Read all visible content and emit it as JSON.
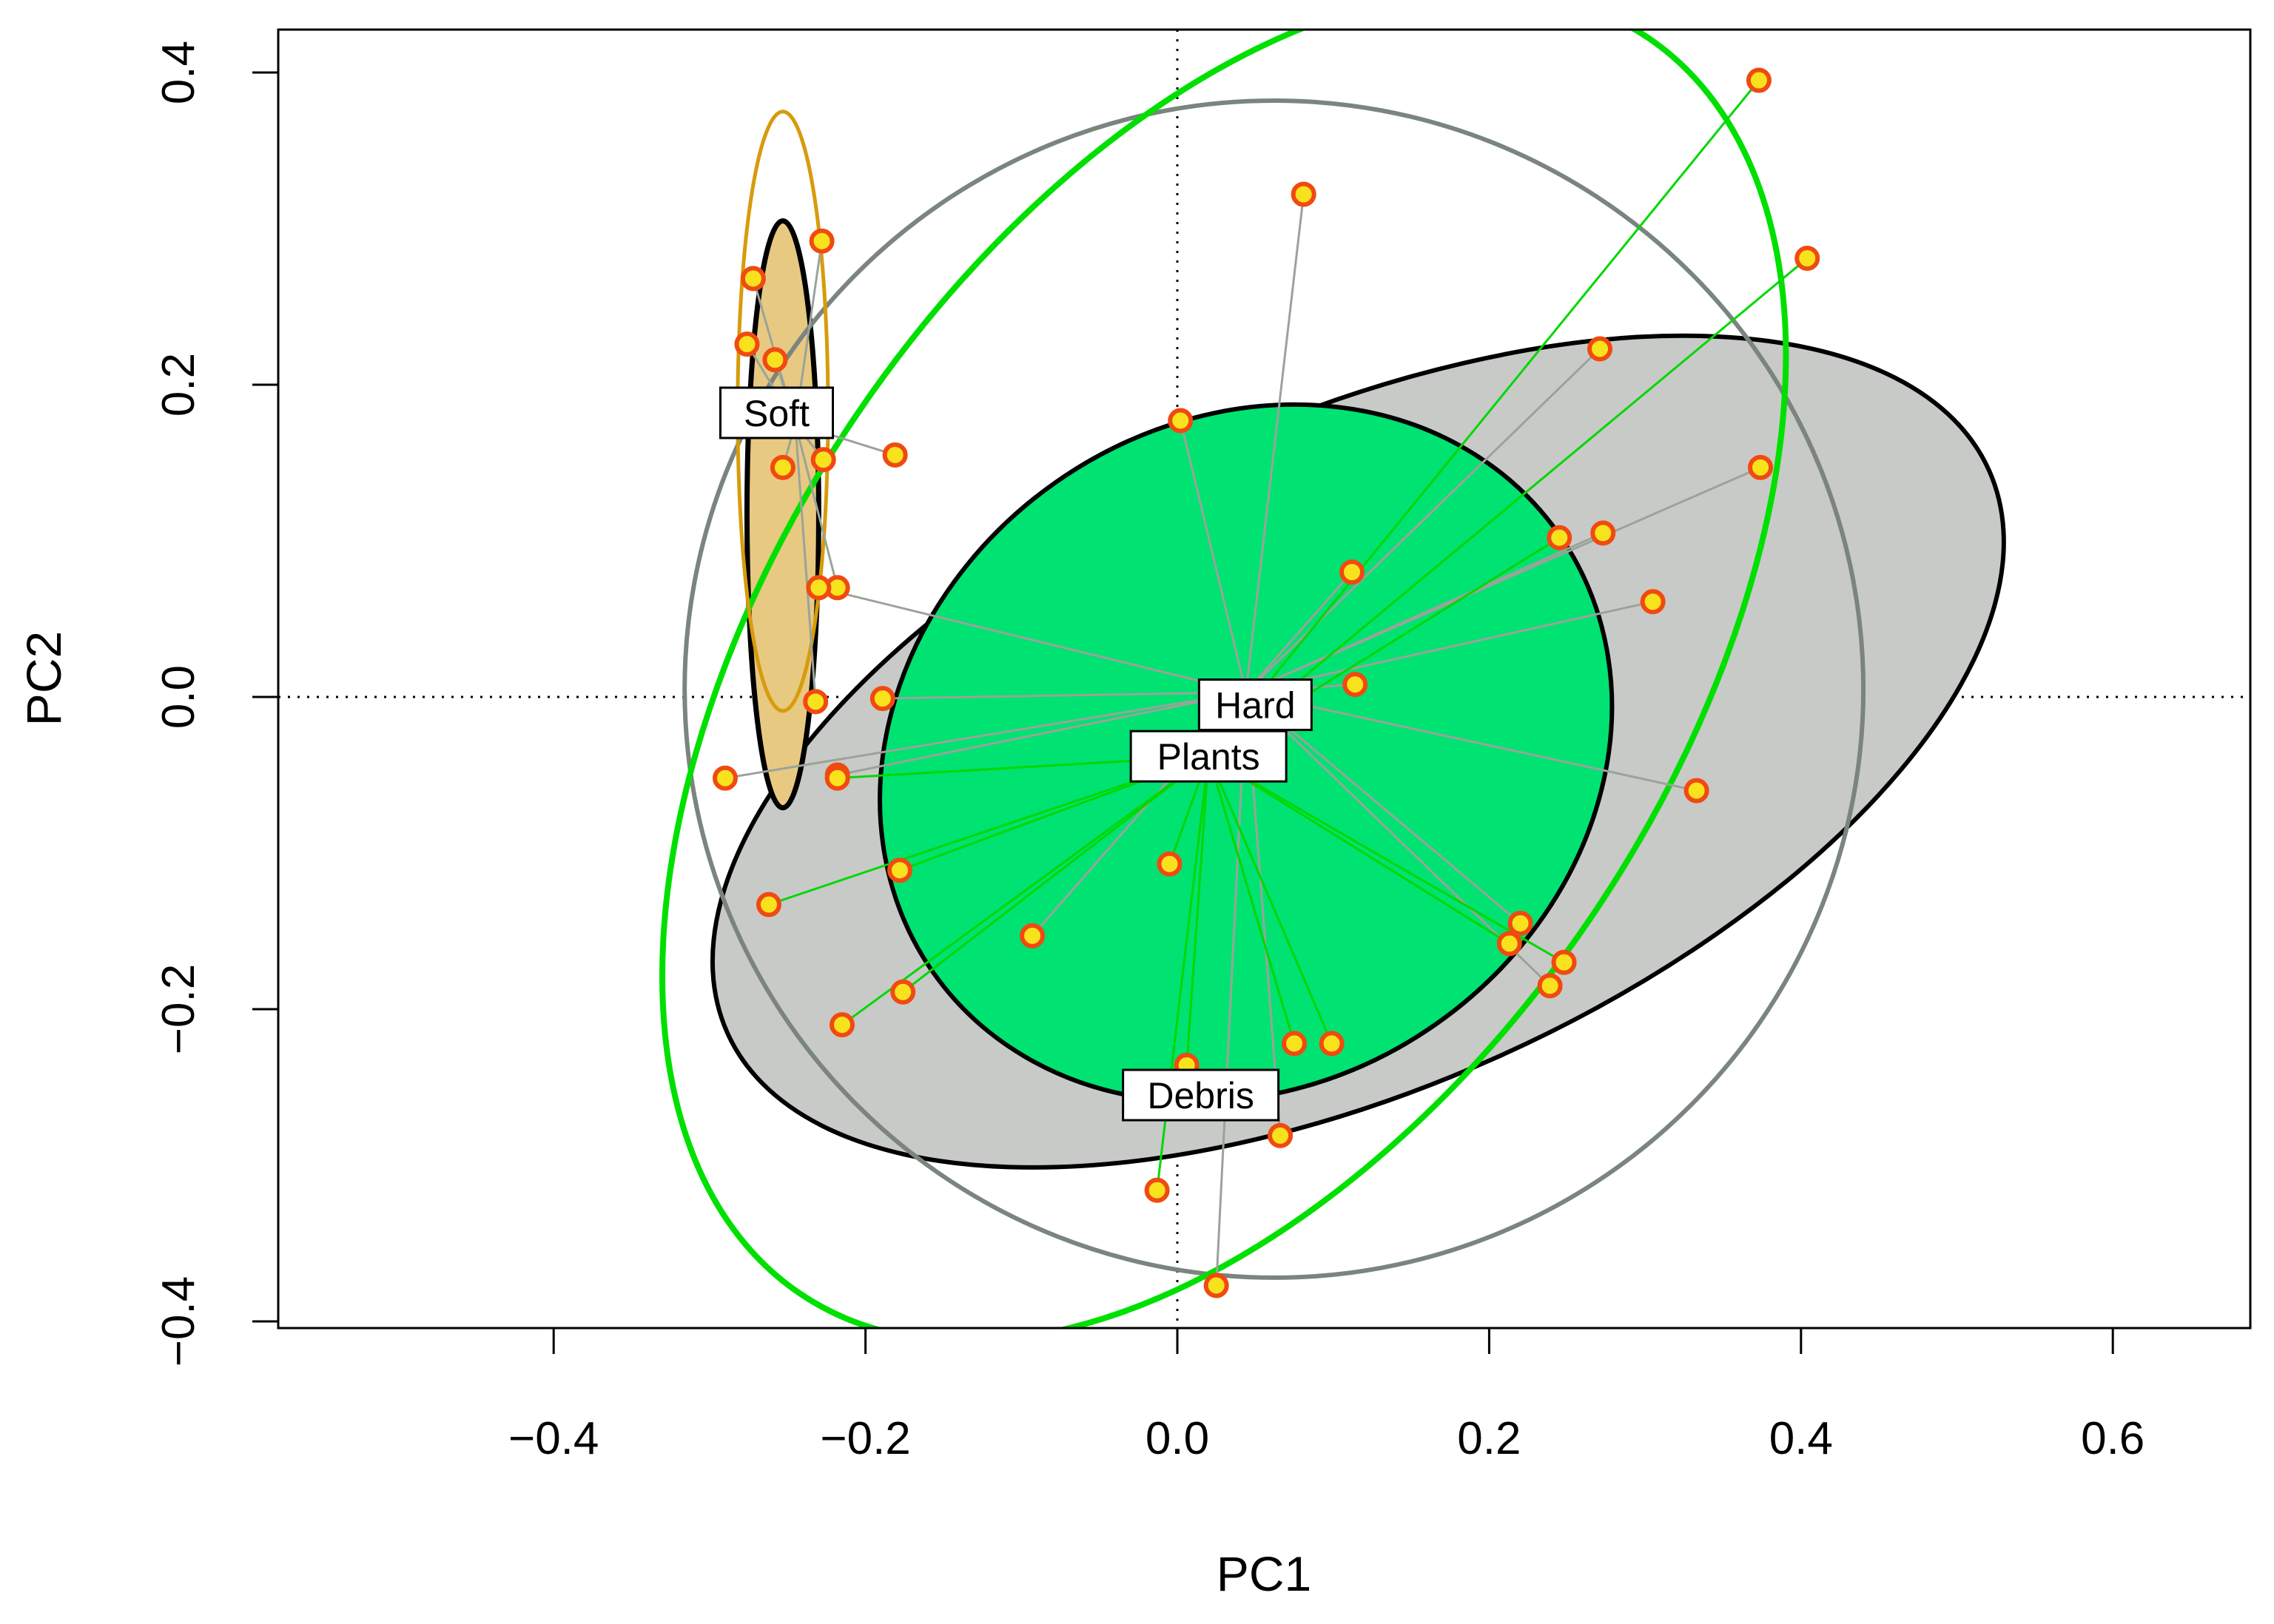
{
  "chart_data": {
    "type": "scatter",
    "xlabel": "PC1",
    "ylabel": "PC2",
    "xlim": [
      -0.58,
      0.68
    ],
    "ylim": [
      -0.405,
      0.425
    ],
    "x_ticks": [
      "-0.4",
      "-0.2",
      "0.0",
      "0.2",
      "0.4",
      "0.6"
    ],
    "y_ticks": [
      "-0.4",
      "-0.2",
      "0.0",
      "0.2",
      "0.4"
    ],
    "x_tick_values": [
      -0.4,
      -0.2,
      0.0,
      0.2,
      0.4,
      0.6
    ],
    "y_tick_values": [
      -0.4,
      -0.2,
      0.0,
      0.2,
      0.4
    ],
    "reference_lines": {
      "x": 0,
      "y": 0,
      "style": "dotted"
    },
    "groups": [
      {
        "name": "Soft",
        "label_position": [
          -0.257,
          0.182
        ],
        "centroid": [
          -0.245,
          0.175
        ],
        "ellipse_fill": "#e8c982",
        "ellipse_fill_center": [
          -0.253,
          0.117
        ],
        "ellipse_fill_radii": [
          0.023,
          0.188
        ],
        "ellipse_outline_color": "#d79b0c",
        "ellipse_outline_center": [
          -0.253,
          0.183
        ],
        "ellipse_outline_radii": [
          0.029,
          0.192
        ],
        "spoke_color": "#9aa39a",
        "points": [
          [
            -0.272,
            0.268
          ],
          [
            -0.228,
            0.292
          ],
          [
            -0.276,
            0.226
          ],
          [
            -0.258,
            0.216
          ],
          [
            -0.253,
            0.147
          ],
          [
            -0.227,
            0.152
          ],
          [
            -0.218,
            0.07
          ],
          [
            -0.232,
            -0.003
          ],
          [
            -0.181,
            0.155
          ]
        ]
      },
      {
        "name": "Hard",
        "label_position": [
          0.05,
          -0.005
        ],
        "centroid": [
          0.044,
          0.003
        ],
        "ellipse_fill": "#c8cac8",
        "ellipse_fill_center": [
          0.116,
          -0.035
        ],
        "ellipse_fill_radii": [
          0.443,
          0.215
        ],
        "ellipse_fill_angle": -24,
        "ellipse_outline_color": "#7a857d",
        "ellipse_outline_center": [
          0.062,
          0.005
        ],
        "ellipse_outline_radii": [
          0.378,
          0.377
        ],
        "spoke_color": "#9aa39a",
        "points": [
          [
            0.081,
            0.322
          ],
          [
            0.002,
            0.177
          ],
          [
            0.271,
            0.223
          ],
          [
            0.374,
            0.147
          ],
          [
            0.273,
            0.105
          ],
          [
            0.305,
            0.061
          ],
          [
            0.333,
            -0.06
          ],
          [
            0.112,
            0.08
          ],
          [
            0.114,
            0.008
          ],
          [
            -0.189,
            -0.001
          ],
          [
            -0.29,
            -0.052
          ],
          [
            -0.218,
            -0.05
          ],
          [
            0.066,
            -0.281
          ],
          [
            0.025,
            -0.377
          ],
          [
            0.239,
            -0.185
          ],
          [
            0.22,
            -0.145
          ],
          [
            -0.093,
            -0.153
          ],
          [
            -0.23,
            0.07
          ]
        ]
      },
      {
        "name": "Plants",
        "label_position": [
          0.02,
          -0.038
        ],
        "centroid": [
          0.02,
          -0.038
        ],
        "ellipse_fill": "#00e272",
        "ellipse_fill_center": [
          0.044,
          -0.036
        ],
        "ellipse_fill_radii": [
          0.245,
          0.212
        ],
        "ellipse_fill_angle": -35,
        "ellipse_outline_color": "#00e000",
        "ellipse_outline_center": [
          0.03,
          0.02
        ],
        "ellipse_outline_radii": [
          0.486,
          0.285
        ],
        "ellipse_outline_angle": -56,
        "spoke_color": "#00d800",
        "points": [
          [
            0.373,
            0.395
          ],
          [
            0.404,
            0.281
          ],
          [
            0.245,
            0.102
          ],
          [
            0.248,
            -0.17
          ],
          [
            0.213,
            -0.158
          ],
          [
            0.099,
            -0.222
          ],
          [
            0.075,
            -0.222
          ],
          [
            0.006,
            -0.236
          ],
          [
            -0.013,
            -0.316
          ],
          [
            -0.176,
            -0.189
          ],
          [
            -0.215,
            -0.21
          ],
          [
            -0.262,
            -0.133
          ],
          [
            -0.178,
            -0.111
          ],
          [
            -0.005,
            -0.107
          ],
          [
            -0.218,
            -0.052
          ]
        ]
      },
      {
        "name": "Debris",
        "label_position": [
          0.015,
          -0.255
        ],
        "centroid": [
          0.015,
          -0.23
        ],
        "ellipse_fill": "#5ef58e",
        "ellipse_fill_center": [
          -0.06,
          -0.09
        ],
        "ellipse_fill_radii": [
          0.24,
          0.145
        ],
        "ellipse_fill_angle": -34,
        "spoke_color": "#00d800",
        "points": []
      }
    ],
    "point_style": {
      "fill": "#f8e21e",
      "stroke": "#f04a10"
    }
  }
}
